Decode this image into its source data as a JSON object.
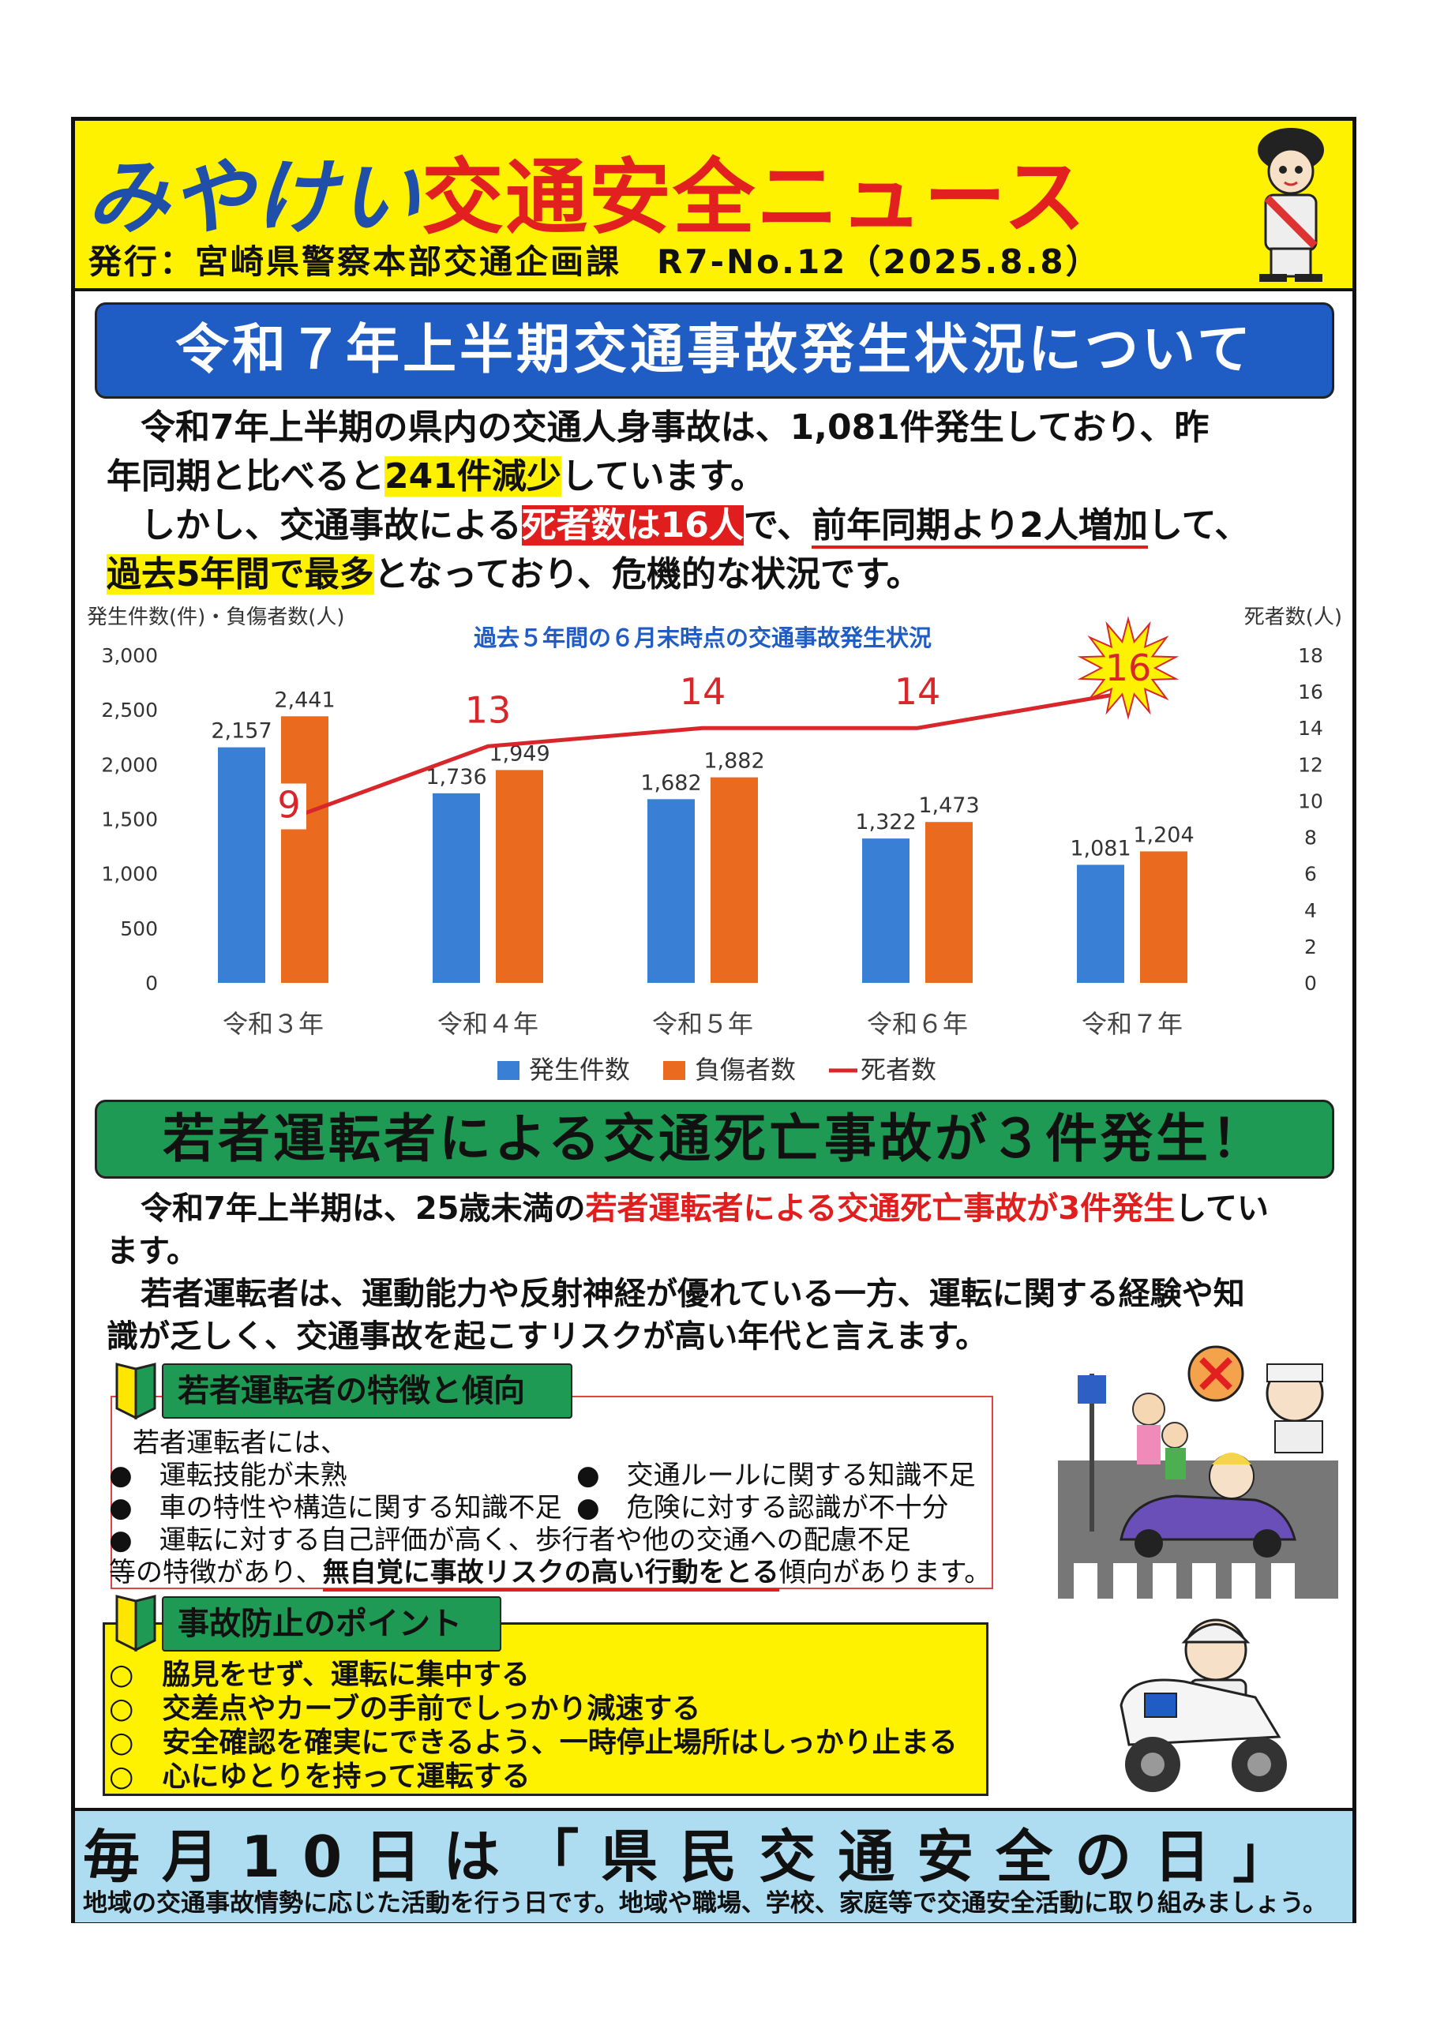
{
  "masthead": {
    "title_part1": "みやけい",
    "title_part2": "交通安全ニュース",
    "publisher": "発行：宮崎県警察本部交通企画課　R7-No.12（2025.8.8）"
  },
  "section1": {
    "banner": "令和７年上半期交通事故発生状況について",
    "p1_a": "令和7年上半期の県内の交通人身事故は、1,081件発生しており、昨",
    "p1_b": "年同期と比べると",
    "p1_hl": "241件減少",
    "p1_c": "しています。",
    "p2_a": "しかし、交通事故による",
    "p2_hl": "死者数は16人",
    "p2_b": "で、",
    "p2_ul": "前年同期より2人増加",
    "p2_c": "して、",
    "p3_hl": "過去5年間で最多",
    "p3_b": "となっており、危機的な状況です。"
  },
  "chart_data": {
    "type": "bar",
    "title": "過去５年間の６月末時点の交通事故発生状況",
    "ylabel_left": "発生件数(件)・負傷者数(人)",
    "ylabel_right": "死者数(人)",
    "categories": [
      "令和３年",
      "令和４年",
      "令和５年",
      "令和６年",
      "令和７年"
    ],
    "series": [
      {
        "name": "発生件数",
        "type": "bar",
        "color": "#3a7fd6",
        "values": [
          2157,
          1736,
          1682,
          1322,
          1081
        ],
        "labels": [
          "2,157",
          "1,736",
          "1,682",
          "1,322",
          "1,081"
        ]
      },
      {
        "name": "負傷者数",
        "type": "bar",
        "color": "#ea6a1f",
        "values": [
          2441,
          1949,
          1882,
          1473,
          1204
        ],
        "labels": [
          "2,441",
          "1,949",
          "1,882",
          "1,473",
          "1,204"
        ]
      },
      {
        "name": "死者数",
        "type": "line",
        "color": "#d8262a",
        "axis": "right",
        "values": [
          9,
          13,
          14,
          14,
          16
        ],
        "labels": [
          "9",
          "13",
          "14",
          "14",
          "16"
        ]
      }
    ],
    "ylim_left": [
      0,
      3000
    ],
    "yticks_left": [
      "0",
      "500",
      "1,000",
      "1,500",
      "2,000",
      "2,500",
      "3,000"
    ],
    "ylim_right": [
      0,
      18
    ],
    "yticks_right": [
      "0",
      "2",
      "4",
      "6",
      "8",
      "10",
      "12",
      "14",
      "16",
      "18"
    ],
    "legend_position": "bottom",
    "grid": false
  },
  "section2": {
    "banner": "若者運転者による交通死亡事故が３件発生！",
    "p1_a": "令和7年上半期は、25歳未満の",
    "p1_red": "若者運転者による交通死亡事故が3件発生",
    "p1_b": "してい",
    "p1_c": "ます。",
    "p2_a": "若者運転者は、運動能力や反射神経が優れている一方、運転に関する経験や知",
    "p2_b": "識が乏しく、交通事故を起こすリスクが高い年代と言えます。"
  },
  "box_traits": {
    "title": "若者運転者の特徴と傾向",
    "intro": "若者運転者には、",
    "bullets": [
      "●　運転技能が未熟",
      "●　交通ルールに関する知識不足",
      "●　車の特性や構造に関する知識不足",
      "●　危険に対する認識が不十分",
      "●　運転に対する自己評価が高く、歩行者や他の交通への配慮不足"
    ],
    "closing_a": "等の特徴があり、",
    "closing_ul": "無自覚に事故リスクの高い行動をとる",
    "closing_b": "傾向があります。"
  },
  "box_points": {
    "title": "事故防止のポイント",
    "items": [
      "○　脇見をせず、運転に集中する",
      "○　交差点やカーブの手前でしっかり減速する",
      "○　安全確認を確実にできるよう、一時停止場所はしっかり止まる",
      "○　心にゆとりを持って運転する"
    ]
  },
  "footer": {
    "main": "毎月10日は「県民交通安全の日」",
    "sub": "地域の交通事故情勢に応じた活動を行う日です。地域や職場、学校、家庭等で交通安全活動に取り組みましょう。"
  },
  "colors": {
    "masthead_bg": "#fff200",
    "banner1_bg": "#1f5cc4",
    "banner2_bg": "#1e9a55",
    "footer_bg": "#aedcf0",
    "accent_red": "#e01e1e"
  },
  "icons": [
    "police-mascot-icon",
    "beginner-leaf-icon",
    "crosswalk-illustration-icon",
    "police-motorcycle-icon"
  ]
}
